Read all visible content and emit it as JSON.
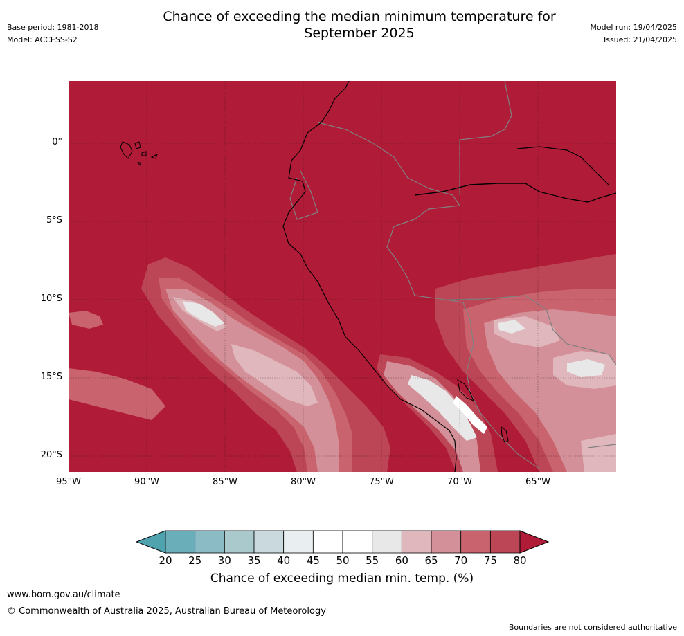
{
  "header": {
    "title_line1": "Chance of exceeding the median minimum temperature for",
    "title_line2": "September 2025",
    "base_period": "Base period: 1981-2018",
    "model": "Model: ACCESS-S2",
    "model_run": "Model run: 19/04/2025",
    "issued": "Issued: 21/04/2025"
  },
  "map": {
    "lat_labels": [
      "0°",
      "5°S",
      "10°S",
      "15°S",
      "20°S"
    ],
    "lon_labels": [
      "95°W",
      "90°W",
      "85°W",
      "80°W",
      "75°W",
      "70°W",
      "65°W"
    ],
    "background_color": "#b01c38"
  },
  "colorbar": {
    "ticks": [
      "20",
      "25",
      "30",
      "35",
      "40",
      "45",
      "50",
      "55",
      "60",
      "65",
      "70",
      "75",
      "80"
    ],
    "colors": [
      "#6aaeba",
      "#8bbbc5",
      "#a9c9cd",
      "#c9d9dd",
      "#e9eef0",
      "#ffffff",
      "#ffffff",
      "#e8e8e9",
      "#e0b7bc",
      "#d49098",
      "#c9646f",
      "#bd4656"
    ],
    "under_color": "#4fa3af",
    "over_color": "#b01c38",
    "label": "Chance of exceeding median min. temp. (%)"
  },
  "footer": {
    "url": "www.bom.gov.au/climate",
    "copyright": "© Commonwealth of Australia 2025, Australian Bureau of Meteorology",
    "disclaimer": "Boundaries are not considered authoritative"
  }
}
